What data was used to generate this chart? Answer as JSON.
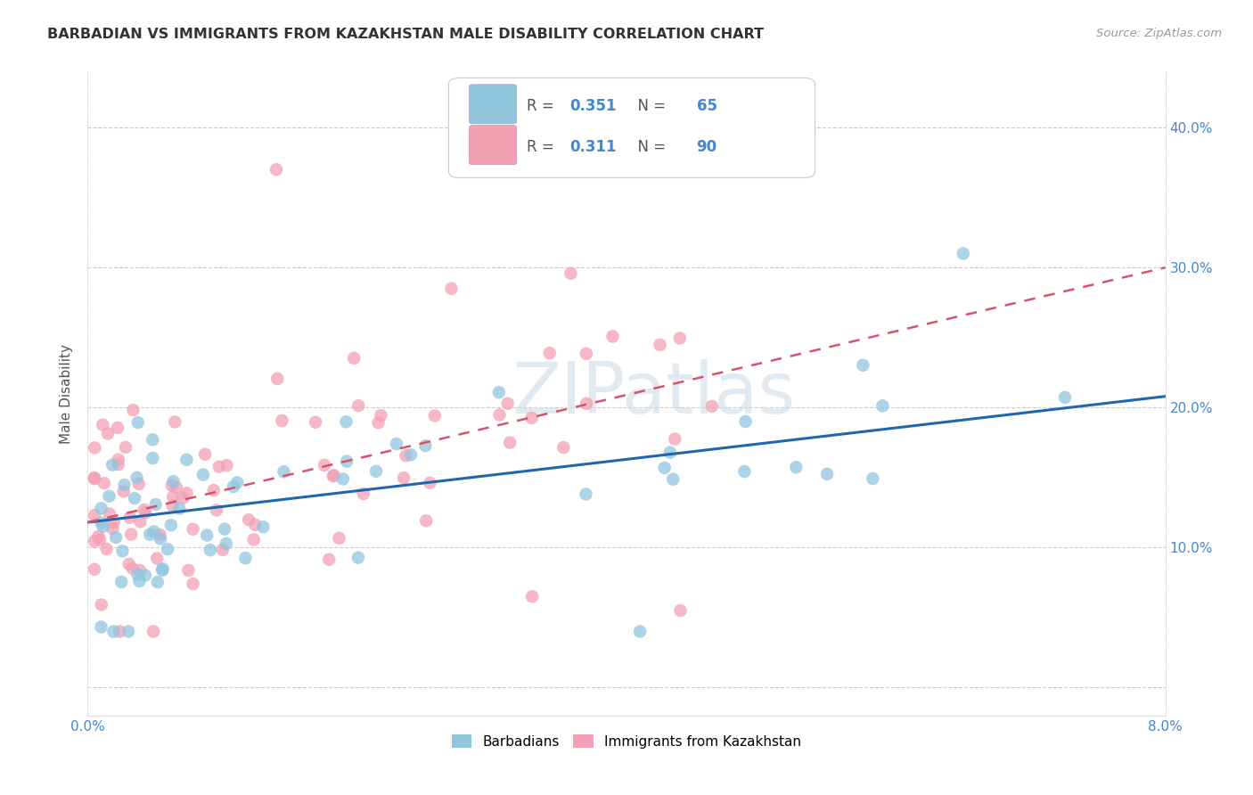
{
  "title": "BARBADIAN VS IMMIGRANTS FROM KAZAKHSTAN MALE DISABILITY CORRELATION CHART",
  "source": "Source: ZipAtlas.com",
  "ylabel": "Male Disability",
  "legend_label1": "Barbadians",
  "legend_label2": "Immigrants from Kazakhstan",
  "r1": "0.351",
  "n1": "65",
  "r2": "0.311",
  "n2": "90",
  "color_blue": "#92c5de",
  "color_pink": "#f4a0b5",
  "line_color_blue": "#2166ac",
  "line_color_pink": "#d6546a",
  "xlim": [
    0.0,
    0.08
  ],
  "ylim": [
    -0.02,
    0.44
  ],
  "yticks": [
    0.0,
    0.1,
    0.2,
    0.3,
    0.4
  ],
  "xticks": [
    0.0,
    0.02,
    0.04,
    0.06,
    0.08
  ],
  "blue_line_x0": 0.0,
  "blue_line_y0": 0.118,
  "blue_line_x1": 0.08,
  "blue_line_y1": 0.208,
  "pink_line_x0": 0.0,
  "pink_line_y0": 0.118,
  "pink_line_x1": 0.08,
  "pink_line_y1": 0.3,
  "watermark": "ZIPatlas"
}
